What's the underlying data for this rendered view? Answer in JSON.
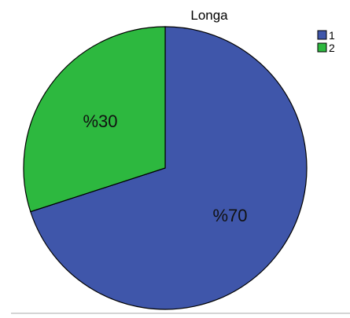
{
  "chart_data": {
    "type": "pie",
    "title": "Longa",
    "categories": [
      "1",
      "2"
    ],
    "values": [
      70,
      30
    ],
    "labels": [
      "%70",
      "%30"
    ],
    "colors": [
      "#3f56aa",
      "#2db83f"
    ],
    "legend": {
      "position": "top-right",
      "entries": [
        "1",
        "2"
      ]
    },
    "start_angle_deg": 0,
    "direction": "clockwise"
  }
}
